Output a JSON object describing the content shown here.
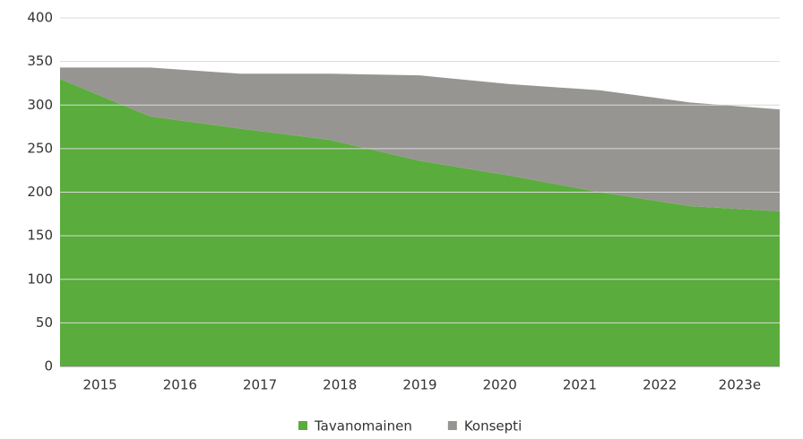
{
  "chart_data": {
    "type": "stacked_area",
    "categories": [
      "2015",
      "2016",
      "2017",
      "2018",
      "2019",
      "2020",
      "2021",
      "2022",
      "2023e"
    ],
    "series": [
      {
        "name": "Tavanomainen",
        "color": "#5aac3c",
        "values": [
          330,
          287,
          273,
          260,
          236,
          219,
          200,
          184,
          178
        ]
      },
      {
        "name": "Konsepti",
        "color": "#979591",
        "values": [
          13,
          56,
          63,
          76,
          98,
          105,
          117,
          119,
          117
        ]
      }
    ],
    "ylim": [
      0,
      400
    ],
    "yticks": [
      0,
      50,
      100,
      150,
      200,
      250,
      300,
      350,
      400
    ],
    "grid": true,
    "legend": "bottom"
  }
}
